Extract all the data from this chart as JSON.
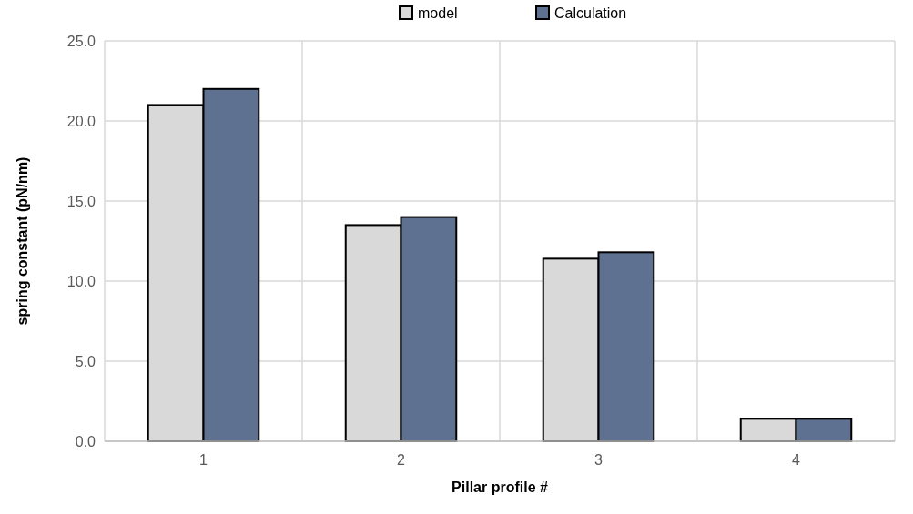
{
  "chart_data": {
    "type": "bar",
    "xlabel": "Pillar profile #",
    "ylabel": "spring constant (pN/nm)",
    "categories": [
      "1",
      "2",
      "3",
      "4"
    ],
    "series": [
      {
        "name": "model",
        "color": "#d9d9d9",
        "values": [
          21.0,
          13.5,
          11.4,
          1.4
        ]
      },
      {
        "name": "Calculation",
        "color": "#5f7190",
        "values": [
          22.0,
          14.0,
          11.8,
          1.4
        ]
      }
    ],
    "ylim": [
      0,
      25
    ],
    "yticks": [
      {
        "value": 0,
        "label": "0.0"
      },
      {
        "value": 5,
        "label": "5.0"
      },
      {
        "value": 10,
        "label": "10.0"
      },
      {
        "value": 15,
        "label": "15.0"
      },
      {
        "value": 20,
        "label": "20.0"
      },
      {
        "value": 25,
        "label": "25.0"
      }
    ],
    "grid": true,
    "legend": "top"
  }
}
